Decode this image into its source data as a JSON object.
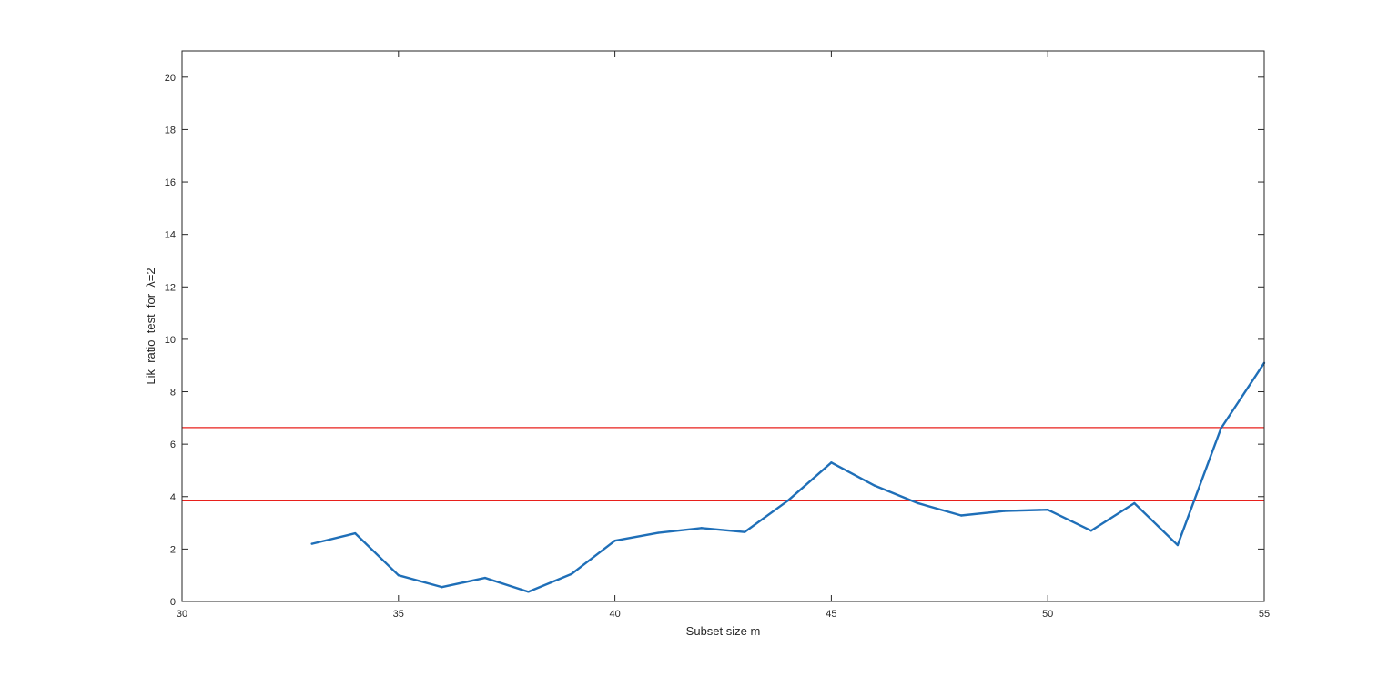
{
  "chart_data": {
    "type": "line",
    "title": "",
    "xlabel": "Subset size m",
    "ylabel": "Lik  ratio  test  for  λ=2",
    "xlim": [
      30,
      55
    ],
    "ylim": [
      0,
      21
    ],
    "xticks": [
      30,
      35,
      40,
      45,
      50,
      55
    ],
    "yticks": [
      0,
      2,
      4,
      6,
      8,
      10,
      12,
      14,
      16,
      18,
      20
    ],
    "grid": false,
    "legend": "none",
    "series": [
      {
        "color": "#1f6fb8",
        "x": [
          33,
          34,
          35,
          36,
          37,
          38,
          39,
          40,
          41,
          42,
          43,
          44,
          45,
          46,
          47,
          48,
          49,
          50,
          51,
          52,
          53,
          54,
          55
        ],
        "y": [
          2.2,
          2.6,
          1.0,
          0.55,
          0.9,
          0.37,
          1.05,
          2.32,
          2.62,
          2.8,
          2.65,
          3.85,
          5.3,
          4.42,
          3.75,
          3.28,
          3.45,
          3.5,
          2.7,
          3.75,
          2.15,
          6.6,
          9.1
        ]
      }
    ],
    "reference_lines": [
      {
        "y": 6.635,
        "color": "#e8201c"
      },
      {
        "y": 3.841,
        "color": "#e8201c"
      }
    ]
  }
}
